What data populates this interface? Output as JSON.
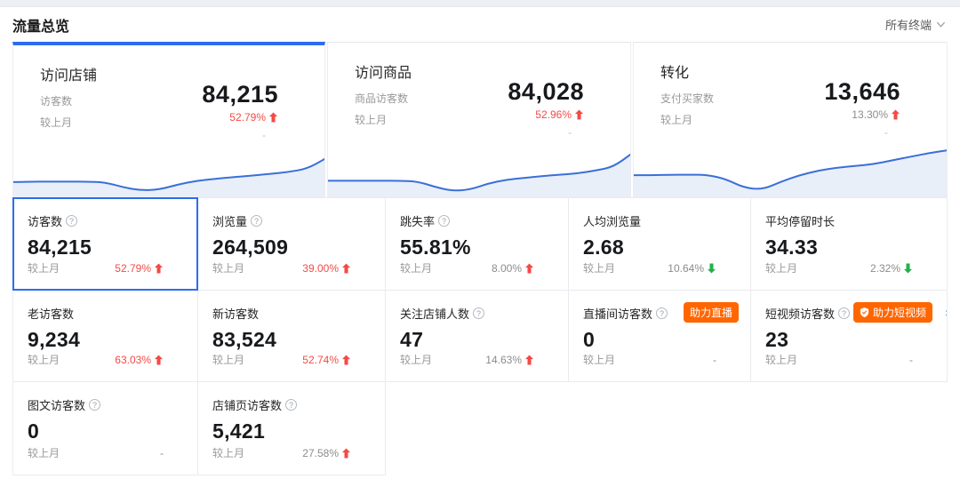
{
  "header": {
    "title": "流量总览",
    "device_filter": "所有终端"
  },
  "summary_cards": [
    {
      "title": "访问店铺",
      "metric_label": "访客数",
      "compare_label": "较上月",
      "value": "84,215",
      "change": "52.79%",
      "direction": "up",
      "change_style": "red",
      "secondary": "-",
      "selected": true,
      "sparkline": [
        0.27,
        0.28,
        0.28,
        0.28,
        0.28,
        0.27,
        0.16,
        0.09,
        0.11,
        0.22,
        0.3,
        0.34,
        0.38,
        0.41,
        0.45,
        0.49,
        0.56,
        0.78
      ]
    },
    {
      "title": "访问商品",
      "metric_label": "商品访客数",
      "compare_label": "较上月",
      "value": "84,028",
      "change": "52.96%",
      "direction": "up",
      "change_style": "red",
      "secondary": "-",
      "selected": false,
      "sparkline": [
        0.3,
        0.3,
        0.3,
        0.3,
        0.3,
        0.29,
        0.17,
        0.08,
        0.11,
        0.24,
        0.32,
        0.36,
        0.4,
        0.43,
        0.46,
        0.52,
        0.6,
        0.88
      ]
    },
    {
      "title": "转化",
      "metric_label": "支付买家数",
      "compare_label": "较上月",
      "value": "13,646",
      "change": "13.30%",
      "direction": "up",
      "change_style": "gray",
      "secondary": "-",
      "selected": false,
      "sparkline": [
        0.42,
        0.42,
        0.43,
        0.43,
        0.43,
        0.34,
        0.15,
        0.11,
        0.28,
        0.42,
        0.52,
        0.58,
        0.62,
        0.66,
        0.74,
        0.82,
        0.9,
        0.96
      ]
    }
  ],
  "grid": {
    "cells": [
      {
        "title": "访客数",
        "info": true,
        "value": "84,215",
        "compare_label": "较上月",
        "change": "52.79%",
        "direction": "up",
        "change_style": "red",
        "selected": true
      },
      {
        "title": "浏览量",
        "info": true,
        "value": "264,509",
        "compare_label": "较上月",
        "change": "39.00%",
        "direction": "up",
        "change_style": "red"
      },
      {
        "title": "跳失率",
        "info": true,
        "value": "55.81%",
        "compare_label": "较上月",
        "change": "8.00%",
        "direction": "up",
        "change_style": "gray"
      },
      {
        "title": "人均浏览量",
        "info": false,
        "value": "2.68",
        "compare_label": "较上月",
        "change": "10.64%",
        "direction": "down",
        "change_style": "gray"
      },
      {
        "title": "平均停留时长",
        "info": false,
        "value": "34.33",
        "compare_label": "较上月",
        "change": "2.32%",
        "direction": "down",
        "change_style": "gray"
      },
      {
        "title": "老访客数",
        "info": false,
        "value": "9,234",
        "compare_label": "较上月",
        "change": "63.03%",
        "direction": "up",
        "change_style": "red"
      },
      {
        "title": "新访客数",
        "info": false,
        "value": "83,524",
        "compare_label": "较上月",
        "change": "52.74%",
        "direction": "up",
        "change_style": "red"
      },
      {
        "title": "关注店铺人数",
        "info": true,
        "value": "47",
        "compare_label": "较上月",
        "change": "14.63%",
        "direction": "up",
        "change_style": "gray"
      },
      {
        "title": "直播间访客数",
        "info": true,
        "value": "0",
        "compare_label": "较上月",
        "change": "-",
        "direction": "none",
        "change_style": "none",
        "badge": {
          "text": "助力直播"
        }
      },
      {
        "title": "短视频访客数",
        "info": true,
        "value": "23",
        "compare_label": "较上月",
        "change": "-",
        "direction": "none",
        "change_style": "none",
        "badge": {
          "text": "助力短视频"
        },
        "chevron": "›"
      },
      {
        "title": "图文访客数",
        "info": true,
        "value": "0",
        "compare_label": "较上月",
        "change": "-",
        "direction": "none",
        "change_style": "none"
      },
      {
        "title": "店铺页访客数",
        "info": true,
        "value": "5,421",
        "compare_label": "较上月",
        "change": "27.58%",
        "direction": "up",
        "change_style": "gray"
      }
    ]
  },
  "colors": {
    "accent_blue": "#2B6CF0",
    "line_blue": "#3A6FD8",
    "area_fill": "#E9EFF9",
    "up_red": "#F54A45",
    "down_green": "#22B14C",
    "badge_orange": "#FF6600"
  }
}
